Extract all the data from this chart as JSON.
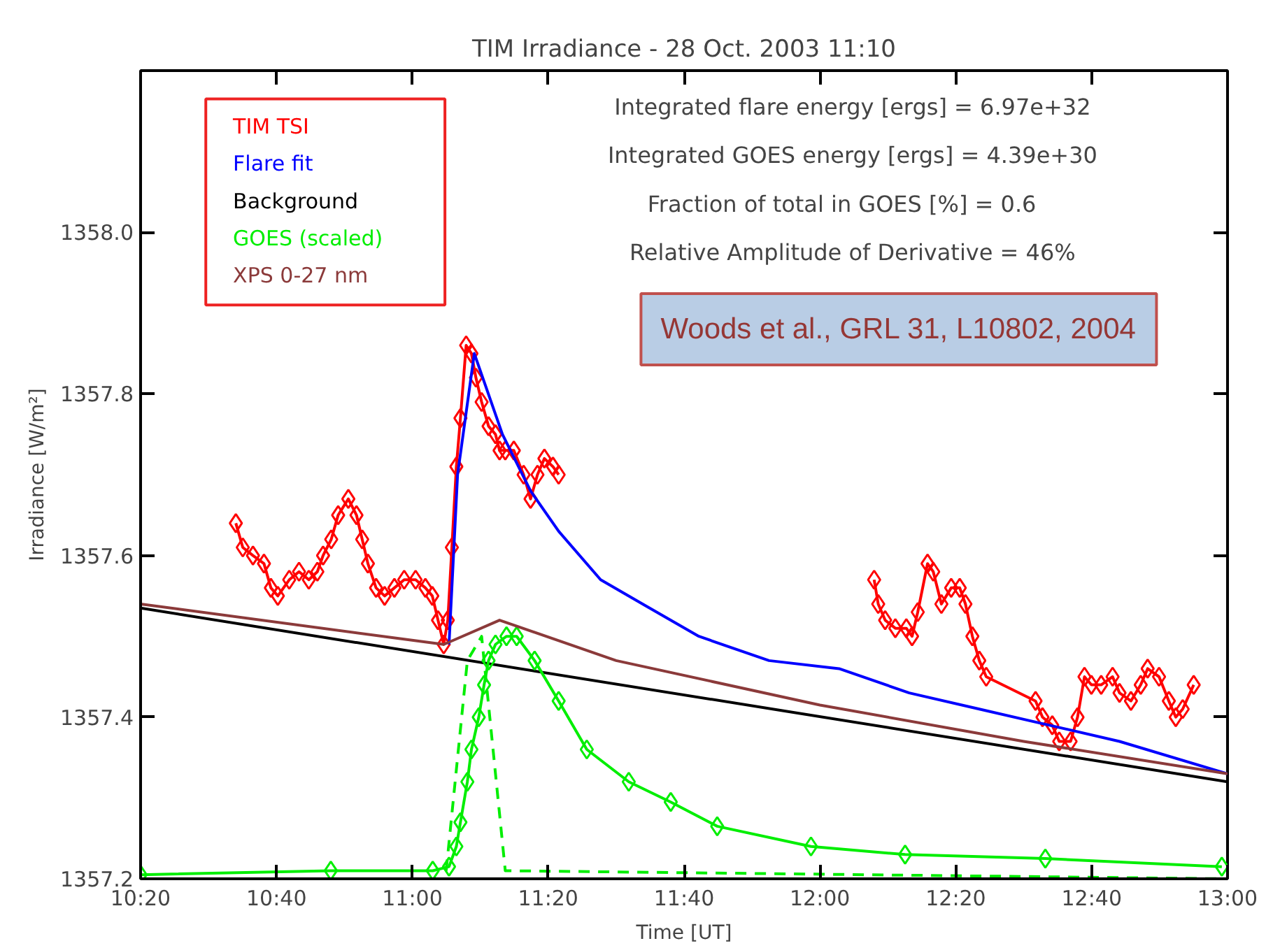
{
  "chart_data": {
    "type": "line",
    "title": "TIM Irradiance - 28 Oct. 2003 11:10",
    "xlabel": "Time [UT]",
    "ylabel": "Irradiance [W/m²]",
    "xlim": [
      10.3333,
      13.0
    ],
    "ylim": [
      1357.2,
      1358.2
    ],
    "xticks": [
      {
        "value": 10.3333,
        "label": "10:20"
      },
      {
        "value": 10.6667,
        "label": "10:40"
      },
      {
        "value": 11.0,
        "label": "11:00"
      },
      {
        "value": 11.3333,
        "label": "11:20"
      },
      {
        "value": 11.6667,
        "label": "11:40"
      },
      {
        "value": 12.0,
        "label": "12:00"
      },
      {
        "value": 12.3333,
        "label": "12:20"
      },
      {
        "value": 12.6667,
        "label": "12:40"
      },
      {
        "value": 13.0,
        "label": "13:00"
      }
    ],
    "yticks": [
      1357.2,
      1357.4,
      1357.6,
      1357.8,
      {
        "value": 1358.0,
        "label": "1358.0"
      }
    ],
    "grid": false,
    "legend": "top left",
    "series": [
      {
        "name": "TIM TSI",
        "color": "#ff0000",
        "marker": "diamond",
        "x": [
          10.567,
          10.584,
          10.609,
          10.636,
          10.653,
          10.67,
          10.698,
          10.722,
          10.746,
          10.767,
          10.781,
          10.801,
          10.818,
          10.843,
          10.863,
          10.877,
          10.891,
          10.911,
          10.932,
          10.956,
          10.98,
          11.008,
          11.032,
          11.049,
          11.063,
          11.077,
          11.087,
          11.097,
          11.108,
          11.118,
          11.132,
          11.145,
          11.156,
          11.17,
          11.187,
          11.204,
          11.214,
          11.228,
          11.249,
          11.273,
          11.29,
          11.307,
          11.324,
          11.345,
          11.359,
          11.7,
          12.133,
          12.143,
          12.16,
          12.185,
          12.212,
          12.226,
          12.24,
          12.264,
          12.278,
          12.298,
          12.322,
          12.343,
          12.357,
          12.374,
          12.391,
          12.408,
          12.529,
          12.546,
          12.57,
          12.587,
          12.615,
          12.632,
          12.649,
          12.666,
          12.69,
          12.718,
          12.735,
          12.763,
          12.787,
          12.804,
          12.832,
          12.856,
          12.873,
          12.89,
          12.917
        ],
        "values": [
          1357.64,
          1357.61,
          1357.6,
          1357.59,
          1357.56,
          1357.55,
          1357.57,
          1357.58,
          1357.57,
          1357.58,
          1357.6,
          1357.62,
          1357.65,
          1357.67,
          1357.65,
          1357.62,
          1357.59,
          1357.56,
          1357.55,
          1357.56,
          1357.57,
          1357.57,
          1357.56,
          1357.55,
          1357.52,
          1357.49,
          1357.52,
          1357.61,
          1357.71,
          1357.77,
          1357.86,
          1357.85,
          1357.82,
          1357.79,
          1357.76,
          1357.75,
          1357.73,
          1357.73,
          1357.73,
          1357.7,
          1357.67,
          1357.7,
          1357.72,
          1357.71,
          1357.7,
          null,
          1357.57,
          1357.54,
          1357.52,
          1357.51,
          1357.51,
          1357.5,
          1357.53,
          1357.59,
          1357.58,
          1357.54,
          1357.56,
          1357.56,
          1357.54,
          1357.5,
          1357.47,
          1357.45,
          1357.42,
          1357.4,
          1357.39,
          1357.37,
          1357.37,
          1357.4,
          1357.45,
          1357.44,
          1357.44,
          1357.45,
          1357.43,
          1357.42,
          1357.44,
          1357.46,
          1357.45,
          1357.42,
          1357.4,
          1357.41,
          1357.44
        ]
      },
      {
        "name": "Flare fit",
        "color": "#0000ff",
        "marker": "none",
        "x": [
          11.09,
          11.111,
          11.152,
          11.221,
          11.29,
          11.359,
          11.462,
          11.565,
          11.703,
          11.875,
          12.047,
          12.219,
          12.391,
          12.563,
          12.735,
          13.0
        ],
        "values": [
          1357.49,
          1357.7,
          1357.85,
          1357.75,
          1357.68,
          1357.63,
          1357.57,
          1357.54,
          1357.5,
          1357.47,
          1357.46,
          1357.43,
          1357.41,
          1357.39,
          1357.37,
          1357.33
        ]
      },
      {
        "name": "Background",
        "color": "#000000",
        "marker": "none",
        "x": [
          10.3333,
          13.0
        ],
        "values": [
          1357.535,
          1357.32
        ]
      },
      {
        "name": "GOES (scaled)",
        "color": "#00ee00",
        "marker": "diamond",
        "x": [
          10.3333,
          10.8,
          11.05,
          11.09,
          11.108,
          11.118,
          11.135,
          11.145,
          11.163,
          11.176,
          11.187,
          11.204,
          11.231,
          11.256,
          11.3,
          11.359,
          11.428,
          11.531,
          11.634,
          11.748,
          11.978,
          12.209,
          12.553,
          12.986
        ],
        "values": [
          1357.205,
          1357.21,
          1357.21,
          1357.215,
          1357.24,
          1357.27,
          1357.32,
          1357.36,
          1357.4,
          1357.44,
          1357.47,
          1357.49,
          1357.5,
          1357.5,
          1357.47,
          1357.42,
          1357.36,
          1357.32,
          1357.295,
          1357.265,
          1357.24,
          1357.23,
          1357.225,
          1357.215
        ]
      },
      {
        "color": "#00ee00",
        "marker": "none",
        "line_style": "dashed",
        "x": [
          11.083,
          11.135,
          11.17,
          11.228,
          13.0
        ],
        "values": [
          1357.21,
          1357.47,
          1357.5,
          1357.21,
          1357.2
        ]
      },
      {
        "name": "XPS 0-27 nm",
        "color": "#8b3a3a",
        "marker": "none",
        "x": [
          10.3333,
          11.077,
          11.1,
          11.214,
          11.5,
          12.0,
          12.5,
          13.0
        ],
        "values": [
          1357.54,
          1357.49,
          1357.495,
          1357.52,
          1357.47,
          1357.415,
          1357.37,
          1357.33
        ]
      }
    ],
    "annotations": [
      "Integrated flare energy [ergs] = 6.97e+32",
      "Integrated GOES energy [ergs] = 4.39e+30",
      "Fraction of total in GOES [%] =    0.6",
      "Relative Amplitude of Derivative = 46%",
      "Woods et al., GRL 31, L10802, 2004"
    ]
  }
}
